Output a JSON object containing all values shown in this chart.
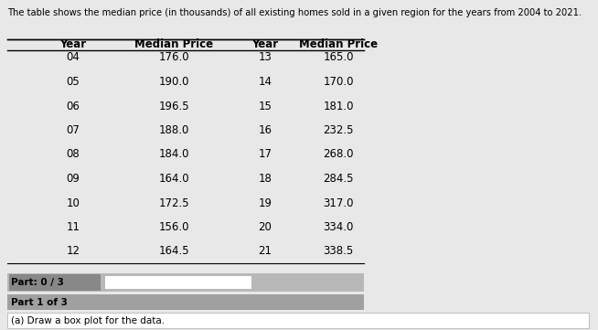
{
  "title": "The table shows the median price (in thousands) of all existing homes sold in a given region for the years from 2004 to 2021.",
  "years_left": [
    "04",
    "05",
    "06",
    "07",
    "08",
    "09",
    "10",
    "11",
    "12"
  ],
  "prices_left": [
    176.0,
    190.0,
    196.5,
    188.0,
    184.0,
    164.0,
    172.5,
    156.0,
    164.5
  ],
  "years_right": [
    "13",
    "14",
    "15",
    "16",
    "17",
    "18",
    "19",
    "20",
    "21"
  ],
  "prices_right": [
    165.0,
    170.0,
    181.0,
    232.5,
    268.0,
    284.5,
    317.0,
    334.0,
    338.5
  ],
  "col_headers": [
    "Year",
    "Median Price",
    "Year",
    "Median Price"
  ],
  "part_label": "Part: 0 / 3",
  "part1_label": "Part 1 of 3",
  "instruction": "(a) Draw a box plot for the data.",
  "bg_color": "#e8e8e8",
  "table_bg": "#ffffff",
  "header_color": "#000000",
  "part_bg": "#d0d0d0",
  "part1_bg": "#c8c8c8",
  "instr_bg": "#ffffff"
}
